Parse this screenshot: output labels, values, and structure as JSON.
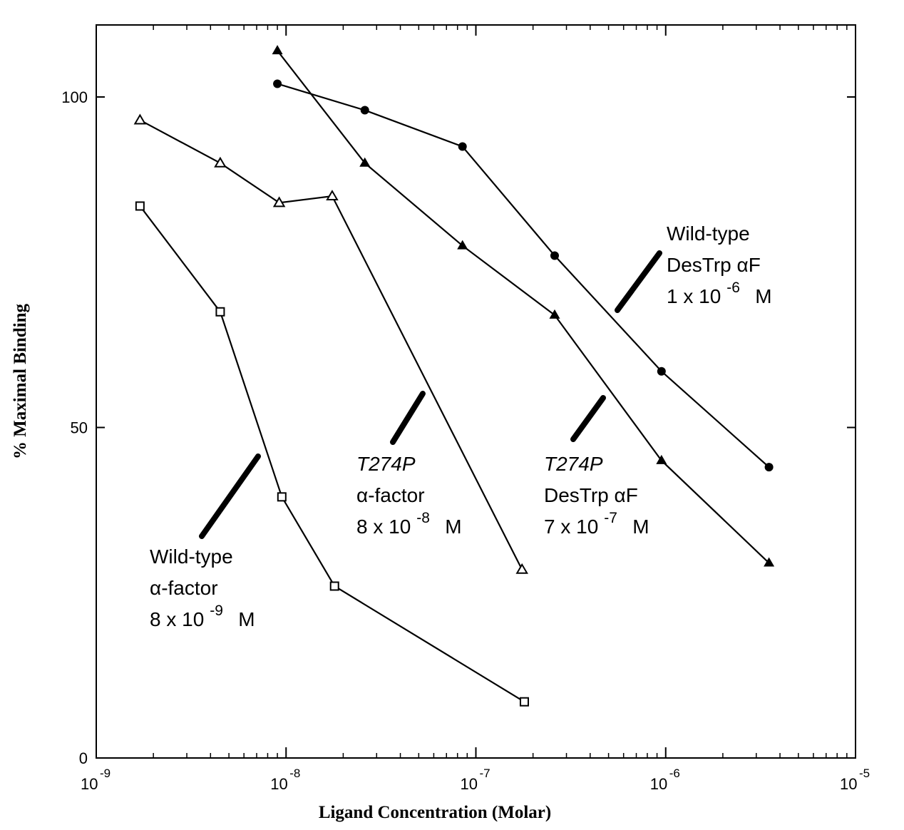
{
  "chart_data": {
    "type": "line",
    "title": "",
    "xlabel": "Ligand Concentration (Molar)",
    "ylabel": "% Maximal Binding",
    "x_scale": "log",
    "xlim": [
      1e-09,
      1e-05
    ],
    "ylim": [
      0,
      100
    ],
    "grid": false,
    "x_ticks": [
      {
        "value": 1e-09,
        "base": "10",
        "exp": "-9"
      },
      {
        "value": 1e-08,
        "base": "10",
        "exp": "-8"
      },
      {
        "value": 1e-07,
        "base": "10",
        "exp": "-7"
      },
      {
        "value": 1e-06,
        "base": "10",
        "exp": "-6"
      },
      {
        "value": 1e-05,
        "base": "10",
        "exp": "-5"
      }
    ],
    "y_ticks": [
      {
        "value": 0,
        "label": "0"
      },
      {
        "value": 50,
        "label": "50"
      },
      {
        "value": 100,
        "label": "100"
      }
    ],
    "series": [
      {
        "marker": "open-square",
        "x": [
          1.7e-09,
          4.5e-09,
          9.5e-09,
          1.8e-08,
          1.8e-07
        ],
        "y": [
          83.5,
          67.5,
          39.5,
          26,
          8.5
        ]
      },
      {
        "marker": "open-triangle",
        "x": [
          1.7e-09,
          4.5e-09,
          9.2e-09,
          1.75e-08,
          1.75e-07
        ],
        "y": [
          96.5,
          90,
          84,
          85,
          28.5
        ]
      },
      {
        "marker": "filled-triangle",
        "x": [
          9e-09,
          2.6e-08,
          8.5e-08,
          2.6e-07,
          9.5e-07,
          3.5e-06
        ],
        "y": [
          107,
          90,
          77.5,
          67,
          45,
          29.5
        ]
      },
      {
        "marker": "filled-diamond",
        "x": [
          9e-09,
          2.6e-08,
          8.5e-08,
          2.6e-07,
          9.5e-07,
          3.5e-06
        ],
        "y": [
          102,
          98,
          92.5,
          76,
          58.5,
          44
        ]
      }
    ],
    "annotations": [
      {
        "lines": [
          {
            "text": "Wild-type"
          },
          {
            "text": "α-factor"
          },
          {
            "text": "8 x 10",
            "exp": "-9",
            "unit": "M"
          }
        ]
      },
      {
        "lines": [
          {
            "text": "T274P",
            "italic": true
          },
          {
            "text": "α-factor"
          },
          {
            "text": "8 x 10",
            "exp": "-8",
            "unit": "M"
          }
        ]
      },
      {
        "lines": [
          {
            "text": "T274P",
            "italic": true
          },
          {
            "text": "DesTrp αF"
          },
          {
            "text": "7 x 10",
            "exp": "-7",
            "unit": "M"
          }
        ]
      },
      {
        "lines": [
          {
            "text": "Wild-type"
          },
          {
            "text": "DesTrp αF"
          },
          {
            "text": "1 x 10",
            "exp": "-6",
            "unit": "M"
          }
        ]
      }
    ]
  }
}
